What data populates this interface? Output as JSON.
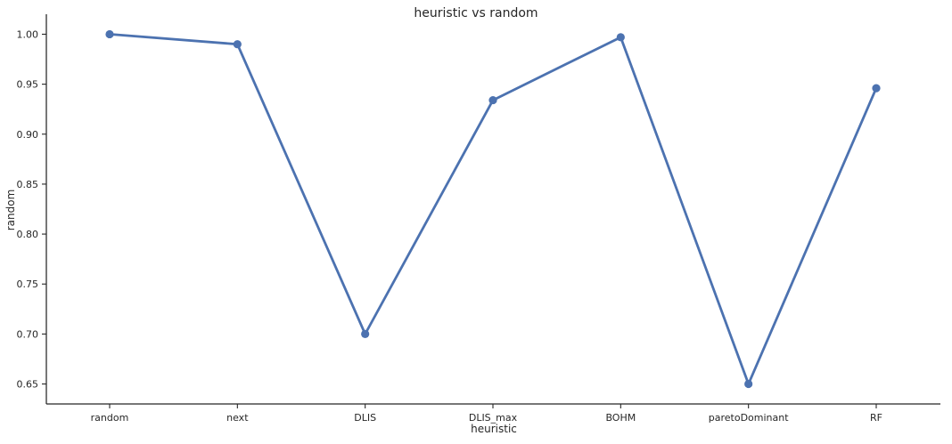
{
  "chart_data": {
    "type": "line",
    "title": "heuristic vs random",
    "xlabel": "heuristic",
    "ylabel": "random",
    "categories": [
      "random",
      "next",
      "DLIS",
      "DLIS_max",
      "BOHM",
      "paretoDominant",
      "RF"
    ],
    "series": [
      {
        "values": [
          1.0,
          0.99,
          0.7,
          0.934,
          0.997,
          0.65,
          0.946
        ]
      }
    ],
    "ylim": [
      0.63,
      1.02
    ],
    "yticks": [
      0.65,
      0.7,
      0.75,
      0.8,
      0.85,
      0.9,
      0.95,
      1.0
    ],
    "ytick_labels": [
      "0.65",
      "0.70",
      "0.75",
      "0.80",
      "0.85",
      "0.90",
      "0.95",
      "1.00"
    ],
    "grid": false,
    "colors": {
      "line": "#4c72b0",
      "axis": "#262626"
    }
  }
}
